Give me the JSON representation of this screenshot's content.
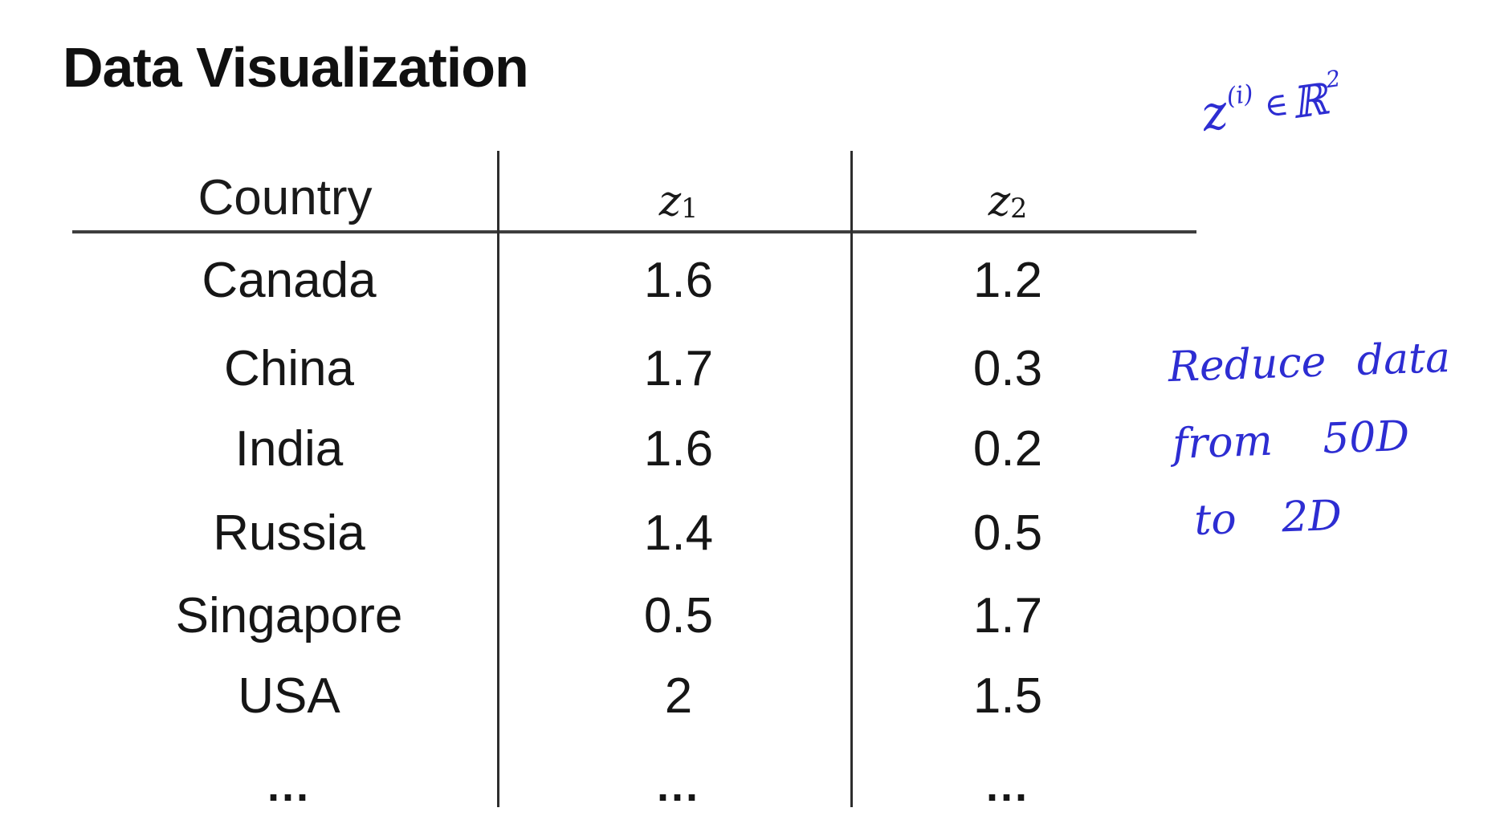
{
  "slide": {
    "title": "Data Visualization"
  },
  "table": {
    "header": {
      "country": "Country",
      "z1_base": "z",
      "z1_sub": "1",
      "z2_base": "z",
      "z2_sub": "2"
    },
    "rows": [
      {
        "country": "Canada",
        "z1": "1.6",
        "z2": "1.2"
      },
      {
        "country": "China",
        "z1": "1.7",
        "z2": "0.3"
      },
      {
        "country": "India",
        "z1": "1.6",
        "z2": "0.2"
      },
      {
        "country": "Russia",
        "z1": "1.4",
        "z2": "0.5"
      },
      {
        "country": "Singapore",
        "z1": "0.5",
        "z2": "1.7"
      },
      {
        "country": "USA",
        "z1": "2",
        "z2": "1.5"
      },
      {
        "country": "...",
        "z1": "...",
        "z2": "..."
      }
    ]
  },
  "annotations": {
    "ink_color": "#2d2dd2",
    "embedding_note": {
      "base": "z",
      "superscript_index": "(i)",
      "element_of": "∈",
      "set_symbol": "ℝ",
      "exponent": "2"
    },
    "reduction_note": {
      "line1": "Reduce data",
      "line2": "from 50D",
      "line3": "to 2D"
    }
  },
  "chart_data": {
    "type": "table",
    "title": "Data Visualization",
    "columns": [
      "Country",
      "z1",
      "z2"
    ],
    "rows": [
      [
        "Canada",
        1.6,
        1.2
      ],
      [
        "China",
        1.7,
        0.3
      ],
      [
        "India",
        1.6,
        0.2
      ],
      [
        "Russia",
        1.4,
        0.5
      ],
      [
        "Singapore",
        0.5,
        1.7
      ],
      [
        "USA",
        2,
        1.5
      ]
    ]
  }
}
